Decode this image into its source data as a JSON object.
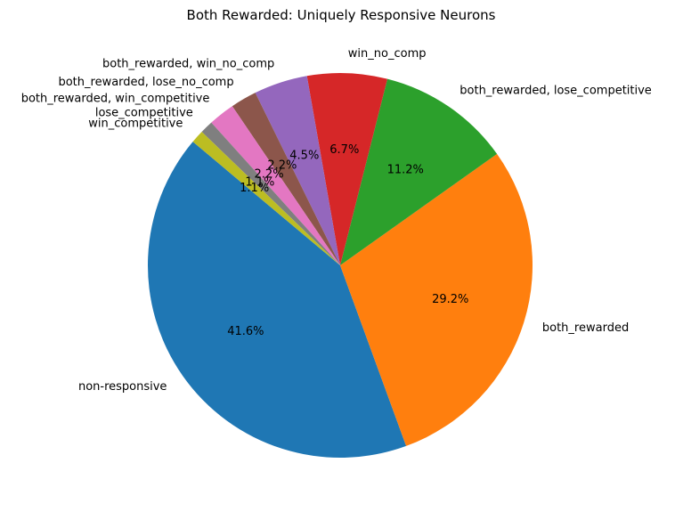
{
  "chart_data": {
    "type": "pie",
    "title": "Both Rewarded: Uniquely Responsive Neurons",
    "start_angle_deg": 140,
    "direction": "counterclockwise",
    "slices": [
      {
        "label": "non-responsive",
        "value": 41.6,
        "pct_label": "41.6%",
        "color": "#1f77b4"
      },
      {
        "label": "both_rewarded",
        "value": 29.2,
        "pct_label": "29.2%",
        "color": "#ff7f0e"
      },
      {
        "label": "both_rewarded, lose_competitive",
        "value": 11.2,
        "pct_label": "11.2%",
        "color": "#2ca02c"
      },
      {
        "label": "win_no_comp",
        "value": 6.7,
        "pct_label": "6.7%",
        "color": "#d62728"
      },
      {
        "label": "both_rewarded, win_no_comp",
        "value": 4.5,
        "pct_label": "4.5%",
        "color": "#9467bd"
      },
      {
        "label": "both_rewarded, lose_no_comp",
        "value": 2.2,
        "pct_label": "2.2%",
        "color": "#8c564b"
      },
      {
        "label": "both_rewarded, win_competitive",
        "value": 2.2,
        "pct_label": "2.2%",
        "color": "#e377c2"
      },
      {
        "label": "lose_competitive",
        "value": 1.1,
        "pct_label": "1.1%",
        "color": "#7f7f7f"
      },
      {
        "label": "win_competitive",
        "value": 1.1,
        "pct_label": "1.1%",
        "color": "#bcbd22"
      }
    ]
  }
}
